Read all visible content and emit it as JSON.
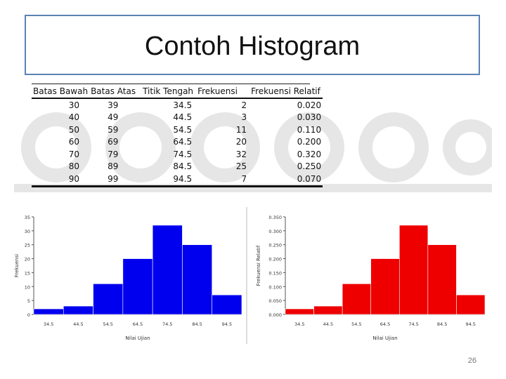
{
  "slide": {
    "title": "Contoh Histogram",
    "page_number": "26"
  },
  "table": {
    "headers": [
      "Batas Bawah",
      "Batas Atas",
      "Titik Tengah",
      "Frekuensi",
      "Frekuensi Relatif"
    ],
    "rows": [
      [
        "30",
        "39",
        "34.5",
        "2",
        "0.020"
      ],
      [
        "40",
        "49",
        "44.5",
        "3",
        "0.030"
      ],
      [
        "50",
        "59",
        "54.5",
        "11",
        "0.110"
      ],
      [
        "60",
        "69",
        "64.5",
        "20",
        "0.200"
      ],
      [
        "70",
        "79",
        "74.5",
        "32",
        "0.320"
      ],
      [
        "80",
        "89",
        "84.5",
        "25",
        "0.250"
      ],
      [
        "90",
        "99",
        "94.5",
        "7",
        "0.070"
      ]
    ]
  },
  "chart_data": [
    {
      "type": "bar",
      "categories": [
        "34.5",
        "44.5",
        "54.5",
        "64.5",
        "74.5",
        "84.5",
        "94.5"
      ],
      "values": [
        2,
        3,
        11,
        20,
        32,
        25,
        7
      ],
      "xlabel": "Nilai Ujian",
      "ylabel": "Frekuensi",
      "ylim": [
        0,
        35
      ],
      "yticks": [
        "0",
        "5",
        "10",
        "15",
        "20",
        "25",
        "30",
        "35"
      ],
      "color": "#0000ee",
      "grid": false
    },
    {
      "type": "bar",
      "categories": [
        "34.5",
        "44.5",
        "54.5",
        "64.5",
        "74.5",
        "84.5",
        "94.5"
      ],
      "values": [
        0.02,
        0.03,
        0.11,
        0.2,
        0.32,
        0.25,
        0.07
      ],
      "xlabel": "Nilai Ujian",
      "ylabel": "Frekuensi Relatif",
      "ylim": [
        0,
        0.35
      ],
      "yticks": [
        "0.000",
        "0.050",
        "0.100",
        "0.150",
        "0.200",
        "0.250",
        "0.300",
        "0.350"
      ],
      "color": "#ee0000",
      "grid": false
    }
  ]
}
